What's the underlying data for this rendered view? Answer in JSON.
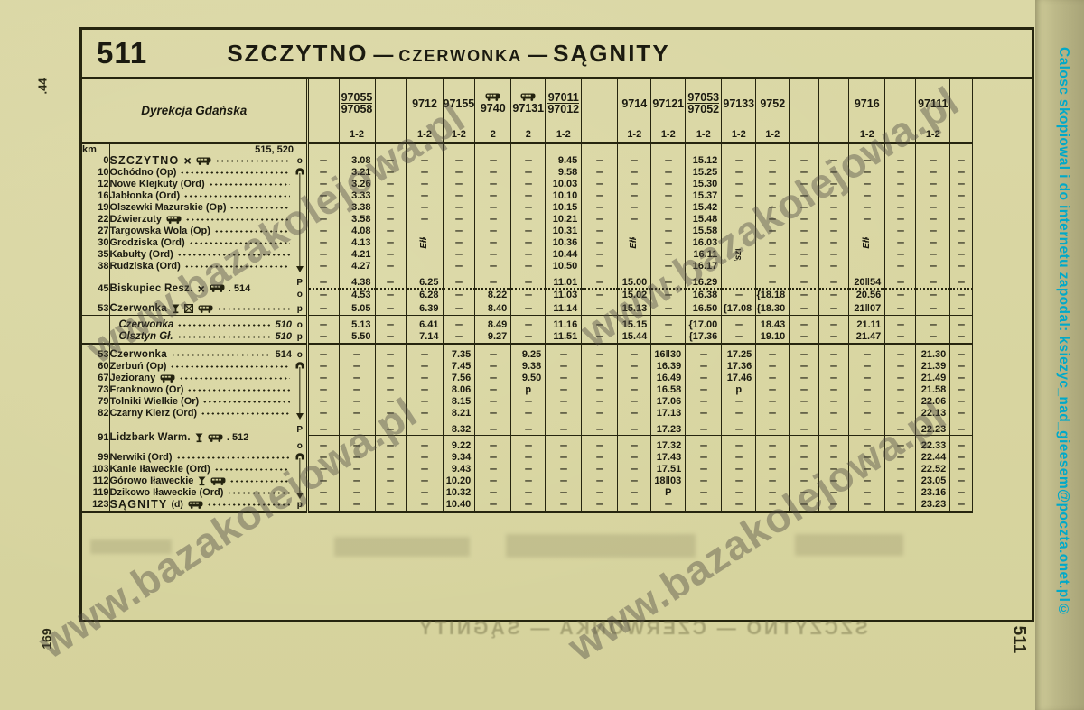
{
  "page": {
    "route_number": "511",
    "title_from": "SZCZYTNO",
    "title_mid": "CZERWONKA",
    "title_to": "SĄGNITY",
    "dash": "—",
    "margin_top_left": ".44",
    "margin_bottom_left": "169",
    "margin_bottom_right": "511",
    "side_note": "Calosc skopiowal i do internetu zapodal: ksiezyc_nad_gieesem@poczta.onet.pl©",
    "watermark": "www.bazakolejowa.pl",
    "ghost_title": "SZCZYTNO — CZERWONKA — SĄGNITY"
  },
  "timetable": {
    "direction": "Dyrekcja Gdańska",
    "km_label": "km",
    "refs": "515, 520",
    "columns": [
      {
        "train": "",
        "cls": ""
      },
      {
        "train": "97055",
        "train2": "97058",
        "cls": "1-2"
      },
      {
        "train": "",
        "cls": ""
      },
      {
        "train": "9712",
        "cls": "1-2"
      },
      {
        "train": "97155",
        "cls": "1-2"
      },
      {
        "train": "9740",
        "cls": "2",
        "bus": true
      },
      {
        "train": "97131",
        "cls": "2",
        "bus": true
      },
      {
        "train": "97011",
        "train2": "97012",
        "cls": "1-2"
      },
      {
        "train": "",
        "cls": ""
      },
      {
        "train": "9714",
        "cls": "1-2"
      },
      {
        "train": "97121",
        "cls": "1-2"
      },
      {
        "train": "97053",
        "train2": "97052",
        "cls": "1-2"
      },
      {
        "train": "97133",
        "cls": "1-2"
      },
      {
        "train": "9752",
        "cls": "1-2"
      },
      {
        "train": "",
        "cls": ""
      },
      {
        "train": "",
        "cls": ""
      },
      {
        "train": "9716",
        "cls": "1-2"
      },
      {
        "train": "",
        "cls": ""
      },
      {
        "train": "97111",
        "cls": "1-2"
      },
      {
        "train": "",
        "cls": ""
      }
    ],
    "vertical_notes": [
      {
        "row": "A8",
        "col": 3,
        "text": "z Ełku"
      },
      {
        "row": "A8",
        "col": 9,
        "text": "z Ełku"
      },
      {
        "row": "A9",
        "col": 12,
        "text": "z Olsztyna"
      },
      {
        "row": "A8",
        "col": 16,
        "text": "z Ełku"
      }
    ],
    "rows": [
      {
        "id": "A1",
        "km": "0",
        "name": "SZCZYTNO",
        "style": "major",
        "icons": [
          "restaurant",
          "bus"
        ],
        "marker": "o",
        "times": [
          "–",
          "3.08",
          "–",
          "–",
          "–",
          "–",
          "–",
          "9.45",
          "–",
          "–",
          "–",
          "15.12",
          "–",
          "–",
          "–",
          "–",
          "–",
          "–",
          "–",
          "–"
        ]
      },
      {
        "id": "A2",
        "km": "10",
        "name": "Ochódno (Op)",
        "style": "plain",
        "marker": "tail",
        "times": [
          "–",
          "3.21",
          "–",
          "–",
          "–",
          "–",
          "–",
          "9.58",
          "–",
          "–",
          "–",
          "15.25",
          "–",
          "–",
          "–",
          "–",
          "–",
          "–",
          "–",
          "–"
        ]
      },
      {
        "id": "A3",
        "km": "12",
        "name": "Nowe Klejkuty (Ord)",
        "style": "plain",
        "marker": "vline",
        "times": [
          "–",
          "3.26",
          "–",
          "–",
          "–",
          "–",
          "–",
          "10.03",
          "–",
          "–",
          "–",
          "15.30",
          "–",
          "–",
          "–",
          "–",
          "–",
          "–",
          "–",
          "–"
        ]
      },
      {
        "id": "A4",
        "km": "16",
        "name": "Jabłonka (Ord)",
        "style": "plain",
        "marker": "vline",
        "times": [
          "–",
          "3.33",
          "–",
          "–",
          "–",
          "–",
          "–",
          "10.10",
          "–",
          "–",
          "–",
          "15.37",
          "–",
          "–",
          "–",
          "–",
          "–",
          "–",
          "–",
          "–"
        ]
      },
      {
        "id": "A5",
        "km": "19",
        "name": "Olszewki Mazurskie (Op)",
        "style": "plain",
        "marker": "vline",
        "times": [
          "–",
          "3.38",
          "–",
          "–",
          "–",
          "–",
          "–",
          "10.15",
          "–",
          "–",
          "–",
          "15.42",
          "–",
          "–",
          "–",
          "–",
          "–",
          "–",
          "–",
          "–"
        ]
      },
      {
        "id": "A6",
        "km": "22",
        "name": "Dźwierzuty",
        "style": "plain",
        "icons": [
          "bus"
        ],
        "marker": "vline",
        "times": [
          "–",
          "3.58",
          "–",
          "–",
          "–",
          "–",
          "–",
          "10.21",
          "–",
          "–",
          "–",
          "15.48",
          "",
          "–",
          "–",
          "–",
          "–",
          "–",
          "–",
          "–"
        ]
      },
      {
        "id": "A7",
        "km": "27",
        "name": "Targowska Wola (Op)",
        "style": "plain",
        "marker": "vline",
        "times": [
          "–",
          "4.08",
          "–",
          "",
          "–",
          "–",
          "–",
          "10.31",
          "–",
          "",
          "–",
          "15.58",
          "",
          "–",
          "–",
          "–",
          "",
          "–",
          "–",
          "–"
        ]
      },
      {
        "id": "A8",
        "km": "30",
        "name": "Grodziska (Ord)",
        "style": "plain",
        "marker": "vline",
        "times": [
          "–",
          "4.13",
          "–",
          "",
          "–",
          "–",
          "–",
          "10.36",
          "–",
          "",
          "–",
          "16.03",
          "",
          "–",
          "–",
          "–",
          "",
          "–",
          "–",
          "–"
        ]
      },
      {
        "id": "A9",
        "km": "35",
        "name": "Kabułty (Ord)",
        "style": "plain",
        "marker": "vline",
        "times": [
          "–",
          "4.21",
          "–",
          "",
          "–",
          "–",
          "–",
          "10.44",
          "–",
          "",
          "–",
          "16.11",
          "",
          "–",
          "–",
          "–",
          "",
          "–",
          "–",
          "–"
        ]
      },
      {
        "id": "A10",
        "km": "38",
        "name": "Rudziska (Ord)",
        "style": "plain",
        "marker": "head",
        "times": [
          "–",
          "4.27",
          "–",
          "",
          "–",
          "–",
          "–",
          "10.50",
          "–",
          "",
          "–",
          "16.17",
          "",
          "–",
          "–",
          "–",
          "",
          "–",
          "–",
          "–"
        ]
      },
      {
        "id": "A11a",
        "km": "45",
        "name": "Biskupiec Resz.",
        "style": "bold",
        "icons": [
          "restaurant",
          "bus"
        ],
        "ref": "514",
        "refpos": "inline",
        "leader": false,
        "marker": "P",
        "pair": "start",
        "gap": 5,
        "sep": "dotted",
        "times": [
          "–",
          "4.38",
          "–",
          "6.25",
          "–",
          "–",
          "–",
          "11.01",
          "–",
          "15.00",
          "–",
          "16.29",
          "",
          "–",
          "–",
          "–",
          "20‖54",
          "–",
          "–",
          "–"
        ]
      },
      {
        "id": "A11b",
        "marker": "o",
        "pair": "end",
        "times": [
          "–",
          "4.53",
          "–",
          "6.28",
          "–",
          "8.22",
          "–",
          "11.03",
          "–",
          "15.02",
          "–",
          "16.38",
          "–",
          "{18.18",
          "–",
          "–",
          "20.56",
          "–",
          "–",
          "–"
        ]
      },
      {
        "id": "A12",
        "km": "53",
        "name": "Czerwonka",
        "style": "bold",
        "icons": [
          "buffet",
          "crossbox",
          "bus"
        ],
        "marker": "p",
        "gap": 3,
        "sep": "solid",
        "times": [
          "–",
          "5.05",
          "–",
          "6.39",
          "–",
          "8.40",
          "–",
          "11.14",
          "–",
          "15.13",
          "–",
          "16.50",
          "{17.08",
          "{18.30",
          "–",
          "–",
          "21‖07",
          "–",
          "–",
          "–"
        ]
      },
      {
        "id": "A13",
        "km": "",
        "name": "Czerwonka",
        "style": "italic",
        "ref": "510",
        "refpos": "end",
        "marker": "o",
        "gap": 4,
        "times": [
          "–",
          "5.13",
          "–",
          "6.41",
          "–",
          "8.49",
          "–",
          "11.16",
          "–",
          "15.15",
          "–",
          "{17.00",
          "–",
          "18.43",
          "–",
          "–",
          "21.11",
          "–",
          "–",
          "–"
        ]
      },
      {
        "id": "A14",
        "km": "",
        "name": "Olsztyn Gł.",
        "style": "italic",
        "ref": "510",
        "refpos": "end",
        "marker": "p",
        "sep": "solid2",
        "times": [
          "–",
          "5.50",
          "–",
          "7.14",
          "–",
          "9.27",
          "–",
          "11.51",
          "–",
          "15.44",
          "–",
          "{17.36",
          "–",
          "19.10",
          "–",
          "–",
          "21.47",
          "–",
          "–",
          "–"
        ]
      },
      {
        "id": "B15",
        "km": "53",
        "name": "Czerwonka",
        "style": "bold",
        "ref": "514",
        "refpos": "end",
        "marker": "o",
        "gap": 5,
        "times": [
          "–",
          "–",
          "–",
          "–",
          "7.35",
          "–",
          "9.25",
          "–",
          "–",
          "–",
          "16‖30",
          "–",
          "17.25",
          "–",
          "–",
          "–",
          "–",
          "–",
          "21.30",
          "–"
        ]
      },
      {
        "id": "B16",
        "km": "60",
        "name": "Zerbuń (Op)",
        "style": "plain",
        "marker": "tail",
        "times": [
          "–",
          "–",
          "–",
          "–",
          "7.45",
          "–",
          "9.38",
          "–",
          "–",
          "–",
          "16.39",
          "–",
          "17.36",
          "–",
          "–",
          "–",
          "–",
          "–",
          "21.39",
          "–"
        ]
      },
      {
        "id": "B17",
        "km": "67",
        "name": "Jeziorany",
        "style": "plain",
        "icons": [
          "bus"
        ],
        "marker": "vline",
        "times": [
          "–",
          "–",
          "–",
          "–",
          "7.56",
          "–",
          "9.50",
          "–",
          "–",
          "–",
          "16.49",
          "–",
          "17.46",
          "–",
          "–",
          "–",
          "–",
          "–",
          "21.49",
          "–"
        ]
      },
      {
        "id": "B18",
        "km": "73",
        "name": "Franknowo (Or)",
        "style": "plain",
        "marker": "vline",
        "times": [
          "–",
          "–",
          "–",
          "–",
          "8.06",
          "–",
          "p",
          "–",
          "–",
          "–",
          "16.58",
          "–",
          "p",
          "–",
          "–",
          "–",
          "–",
          "–",
          "21.58",
          "–"
        ]
      },
      {
        "id": "B19",
        "km": "79",
        "name": "Tolniki Wielkie (Or)",
        "style": "plain",
        "marker": "vline",
        "times": [
          "–",
          "–",
          "–",
          "–",
          "8.15",
          "–",
          "–",
          "–",
          "–",
          "–",
          "17.06",
          "–",
          "–",
          "–",
          "–",
          "–",
          "–",
          "–",
          "22.06",
          "–"
        ]
      },
      {
        "id": "B20",
        "km": "82",
        "name": "Czarny Kierz (Ord)",
        "style": "plain",
        "marker": "head",
        "times": [
          "–",
          "–",
          "–",
          "–",
          "8.21",
          "–",
          "–",
          "–",
          "–",
          "–",
          "17.13",
          "–",
          "–",
          "–",
          "–",
          "–",
          "–",
          "–",
          "22.13",
          "–"
        ]
      },
      {
        "id": "B21a",
        "km": "91",
        "name": "Lidzbark Warm.",
        "style": "bold",
        "icons": [
          "buffet",
          "bus"
        ],
        "ref": "512",
        "refpos": "inline",
        "leader": false,
        "marker": "P",
        "pair": "start",
        "gap": 5,
        "sep": "thin",
        "times": [
          "–",
          "–",
          "–",
          "–",
          "8.32",
          "–",
          "–",
          "–",
          "–",
          "–",
          "17.23",
          "–",
          "–",
          "–",
          "–",
          "–",
          "–",
          "–",
          "22.23",
          "–"
        ]
      },
      {
        "id": "B21b",
        "marker": "o",
        "pair": "end",
        "gap": 5,
        "times": [
          "–",
          "–",
          "–",
          "–",
          "9.22",
          "–",
          "–",
          "–",
          "–",
          "–",
          "17.32",
          "–",
          "–",
          "–",
          "–",
          "–",
          "–",
          "–",
          "22.33",
          "–"
        ]
      },
      {
        "id": "B22",
        "km": "99",
        "name": "Nerwiki (Ord)",
        "style": "plain",
        "marker": "tail",
        "times": [
          "–",
          "–",
          "–",
          "–",
          "9.34",
          "–",
          "–",
          "–",
          "–",
          "–",
          "17.43",
          "–",
          "–",
          "–",
          "–",
          "–",
          "–",
          "–",
          "22.44",
          "–"
        ]
      },
      {
        "id": "B23",
        "km": "103",
        "name": "Kanie Iławeckie (Ord)",
        "style": "plain",
        "marker": "vline",
        "times": [
          "–",
          "–",
          "–",
          "–",
          "9.43",
          "–",
          "–",
          "–",
          "–",
          "–",
          "17.51",
          "–",
          "–",
          "–",
          "–",
          "–",
          "–",
          "–",
          "22.52",
          "–"
        ]
      },
      {
        "id": "B24",
        "km": "112",
        "name": "Górowo Iławeckie",
        "style": "plain",
        "icons": [
          "buffet",
          "bus"
        ],
        "marker": "vline",
        "times": [
          "–",
          "–",
          "–",
          "–",
          "10.20",
          "–",
          "–",
          "–",
          "–",
          "–",
          "18‖03",
          "–",
          "–",
          "–",
          "–",
          "–",
          "–",
          "–",
          "23.05",
          "–"
        ]
      },
      {
        "id": "B25",
        "km": "119",
        "name": "Dzikowo Iławeckie (Ord)",
        "style": "plain",
        "marker": "head",
        "times": [
          "–",
          "–",
          "–",
          "–",
          "10.32",
          "–",
          "–",
          "–",
          "–",
          "–",
          "P",
          "–",
          "–",
          "–",
          "–",
          "–",
          "–",
          "–",
          "23.16",
          "–"
        ]
      },
      {
        "id": "B26",
        "km": "123",
        "name": "SĄGNITY",
        "name2": "(d)",
        "style": "major",
        "icons": [
          "bus"
        ],
        "marker": "p",
        "sep": "heavy",
        "times": [
          "–",
          "–",
          "–",
          "–",
          "10.40",
          "–",
          "–",
          "–",
          "–",
          "–",
          "–",
          "–",
          "–",
          "–",
          "–",
          "–",
          "–",
          "–",
          "23.23",
          "–"
        ]
      }
    ]
  }
}
